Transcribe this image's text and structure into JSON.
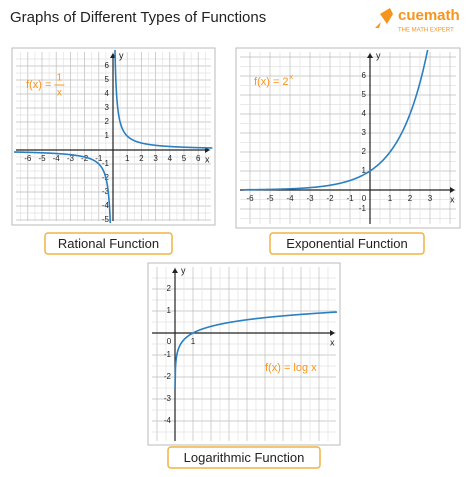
{
  "header": {
    "title": "Graphs of Different Types of Functions",
    "brand": "cuemath",
    "tagline": "THE MATH EXPERT"
  },
  "panels": [
    {
      "function": "rational",
      "formula": {
        "lhs": "f(x) =",
        "numerator": "1",
        "denominator": "x"
      },
      "caption": "Rational Function",
      "x_label": "x",
      "y_label": "y",
      "xticks": [
        -6,
        -5,
        -4,
        -3,
        -2,
        -1,
        1,
        2,
        3,
        4,
        5,
        6
      ],
      "yticks": [
        6,
        5,
        4,
        3,
        2,
        1,
        -1,
        -2,
        -3,
        -4,
        -5
      ]
    },
    {
      "function": "exponential",
      "formula": {
        "lhs": "f(x) = 2",
        "exponent": "x"
      },
      "caption": "Exponential Function",
      "x_label": "x",
      "y_label": "y",
      "xticks": [
        -6,
        -5,
        -4,
        -3,
        -2,
        -1,
        0,
        1,
        2,
        3
      ],
      "yticks": [
        6,
        5,
        4,
        3,
        2,
        1,
        -1
      ]
    },
    {
      "function": "logarithmic",
      "formula": {
        "lhs": "f(x) = log x"
      },
      "caption": "Logarithmic Function",
      "x_label": "x",
      "y_label": "y",
      "xticks": [
        0,
        1
      ],
      "yticks": [
        2,
        1,
        -1,
        -2,
        -3,
        -4
      ]
    }
  ]
}
